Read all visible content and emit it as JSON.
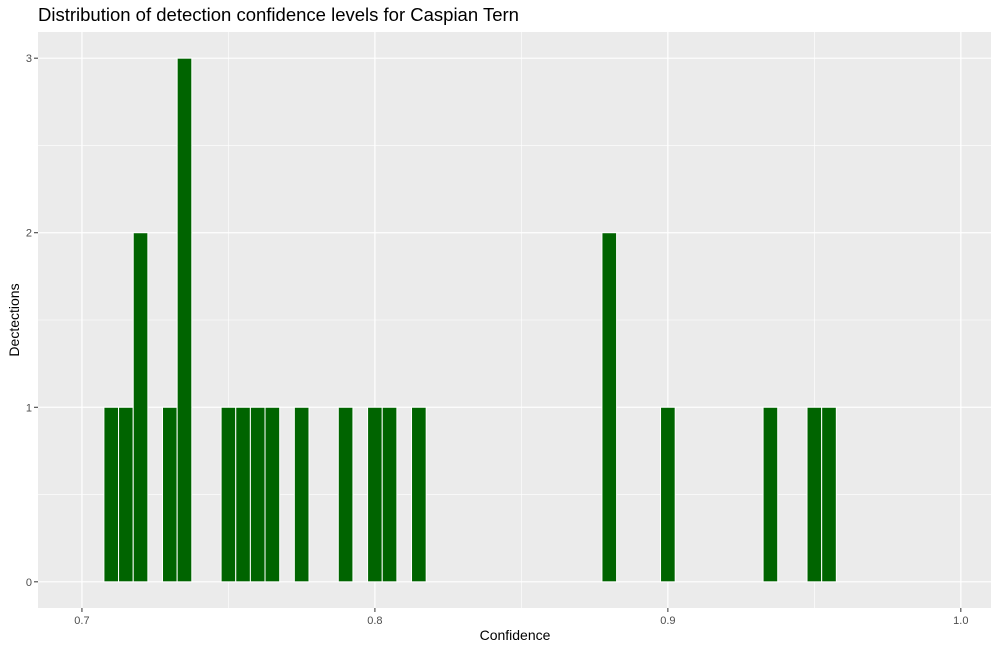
{
  "chart_data": {
    "type": "bar",
    "title": "Distribution of detection confidence levels for Caspian Tern",
    "xlabel": "Confidence",
    "ylabel": "Dectections",
    "xlim": [
      0.685,
      1.0103
    ],
    "ylim": [
      -0.15,
      3.15
    ],
    "bin_width": 0.005,
    "x_ticks": [
      0.7,
      0.8,
      0.9,
      1.0
    ],
    "x_tick_labels": [
      "0.7",
      "0.8",
      "0.9",
      "1.0"
    ],
    "y_ticks": [
      0,
      1,
      2,
      3
    ],
    "y_tick_labels": [
      "0",
      "1",
      "2",
      "3"
    ],
    "grid": true,
    "bar_color": "#006400",
    "panel_color": "#EBEBEB",
    "x": [
      0.71,
      0.715,
      0.72,
      0.73,
      0.735,
      0.75,
      0.755,
      0.76,
      0.765,
      0.775,
      0.79,
      0.8,
      0.805,
      0.815,
      0.88,
      0.9,
      0.935,
      0.95,
      0.955
    ],
    "values": [
      1,
      1,
      2,
      1,
      3,
      1,
      1,
      1,
      1,
      1,
      1,
      1,
      1,
      1,
      2,
      1,
      1,
      1,
      1
    ]
  }
}
